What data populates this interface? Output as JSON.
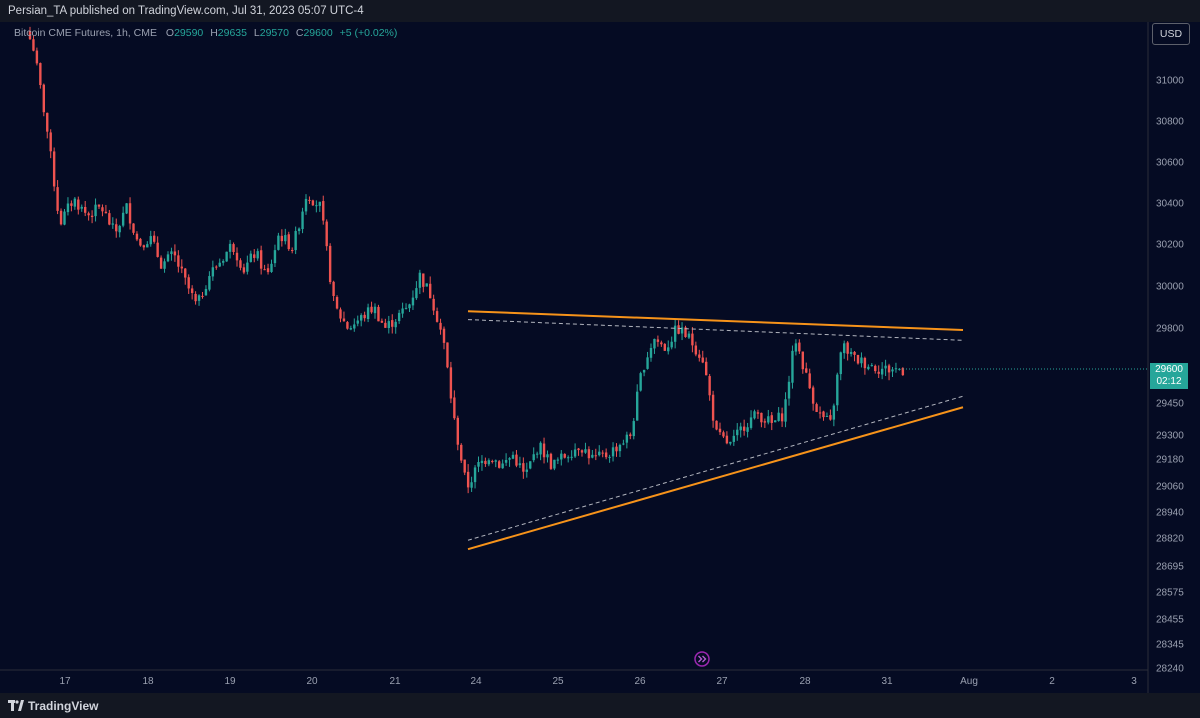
{
  "header": {
    "publisher_text": "Persian_TA published on TradingView.com, Jul 31, 2023 05:07 UTC-4"
  },
  "legend": {
    "symbol": "Bitcoin CME Futures, 1h, CME",
    "open_label": "O",
    "open": "29590",
    "high_label": "H",
    "high": "29635",
    "low_label": "L",
    "low": "29570",
    "close_label": "C",
    "close": "29600",
    "change": "+5 (+0.02%)"
  },
  "currency_button": "USD",
  "price_label": {
    "price": "29600",
    "countdown": "02:12"
  },
  "footer": {
    "brand": "TradingView"
  },
  "colors": {
    "background": "#050b23",
    "up": "#26a69a",
    "down": "#ef5350",
    "trendline": "#f7931a",
    "dashed": "#b2b5be"
  },
  "chart_data": {
    "type": "candlestick",
    "symbol": "Bitcoin CME Futures",
    "interval": "1h",
    "y_axis_ticks": [
      31000,
      30800,
      30600,
      30400,
      30200,
      30000,
      29800,
      29600,
      29450,
      29300,
      29180,
      29060,
      28940,
      28820,
      28695,
      28575,
      28455,
      28345,
      28240
    ],
    "x_axis_ticks": [
      "17",
      "18",
      "19",
      "20",
      "21",
      "24",
      "25",
      "26",
      "27",
      "28",
      "31",
      "Aug",
      "2",
      "3"
    ],
    "close_path": [
      [
        "17",
        31200
      ],
      [
        "17",
        30800
      ],
      [
        "17",
        30300
      ],
      [
        "17",
        30420
      ],
      [
        "17",
        30340
      ],
      [
        "17",
        30380
      ],
      [
        "18",
        30250
      ],
      [
        "18",
        30380
      ],
      [
        "18",
        30200
      ],
      [
        "18",
        30230
      ],
      [
        "18",
        30100
      ],
      [
        "18",
        30150
      ],
      [
        "18",
        30020
      ],
      [
        "19",
        29900
      ],
      [
        "19",
        30050
      ],
      [
        "19",
        30120
      ],
      [
        "19",
        30200
      ],
      [
        "19",
        30080
      ],
      [
        "19",
        30160
      ],
      [
        "19",
        30040
      ],
      [
        "20",
        30250
      ],
      [
        "20",
        30180
      ],
      [
        "20",
        30450
      ],
      [
        "20",
        30380
      ],
      [
        "20",
        29900
      ],
      [
        "20",
        29800
      ],
      [
        "21",
        29850
      ],
      [
        "21",
        29900
      ],
      [
        "21",
        29800
      ],
      [
        "21",
        29850
      ],
      [
        "21",
        29900
      ],
      [
        "21",
        30050
      ],
      [
        "21",
        29950
      ],
      [
        "24",
        29750
      ],
      [
        "24",
        29350
      ],
      [
        "24",
        29050
      ],
      [
        "24",
        29150
      ],
      [
        "24",
        29200
      ],
      [
        "24",
        29150
      ],
      [
        "24",
        29200
      ],
      [
        "25",
        29100
      ],
      [
        "25",
        29250
      ],
      [
        "25",
        29150
      ],
      [
        "25",
        29200
      ],
      [
        "25",
        29250
      ],
      [
        "25",
        29180
      ],
      [
        "26",
        29200
      ],
      [
        "26",
        29250
      ],
      [
        "26",
        29300
      ],
      [
        "26",
        29600
      ],
      [
        "26",
        29750
      ],
      [
        "26",
        29700
      ],
      [
        "26",
        29800
      ],
      [
        "27",
        29750
      ],
      [
        "27",
        29650
      ],
      [
        "27",
        29300
      ],
      [
        "27",
        29250
      ],
      [
        "27",
        29350
      ],
      [
        "27",
        29400
      ],
      [
        "28",
        29350
      ],
      [
        "28",
        29400
      ],
      [
        "28",
        29750
      ],
      [
        "28",
        29550
      ],
      [
        "28",
        29400
      ],
      [
        "28",
        29350
      ],
      [
        "28",
        29720
      ],
      [
        "31",
        29650
      ],
      [
        "31",
        29600
      ]
    ],
    "trendlines": [
      {
        "style": "solid",
        "color": "orange",
        "from": [
          "23 (late)",
          29880
        ],
        "to": [
          "30",
          29790
        ]
      },
      {
        "style": "solid",
        "color": "orange",
        "from": [
          "23 (late)",
          28770
        ],
        "to": [
          "30",
          29430
        ]
      },
      {
        "style": "dashed",
        "color": "grey",
        "from": [
          "23 (late)",
          29840
        ],
        "to": [
          "30",
          29740
        ]
      },
      {
        "style": "dashed",
        "color": "grey",
        "from": [
          "23 (late)",
          28810
        ],
        "to": [
          "30",
          29480
        ]
      }
    ],
    "last_price": 29600,
    "grid": false
  }
}
